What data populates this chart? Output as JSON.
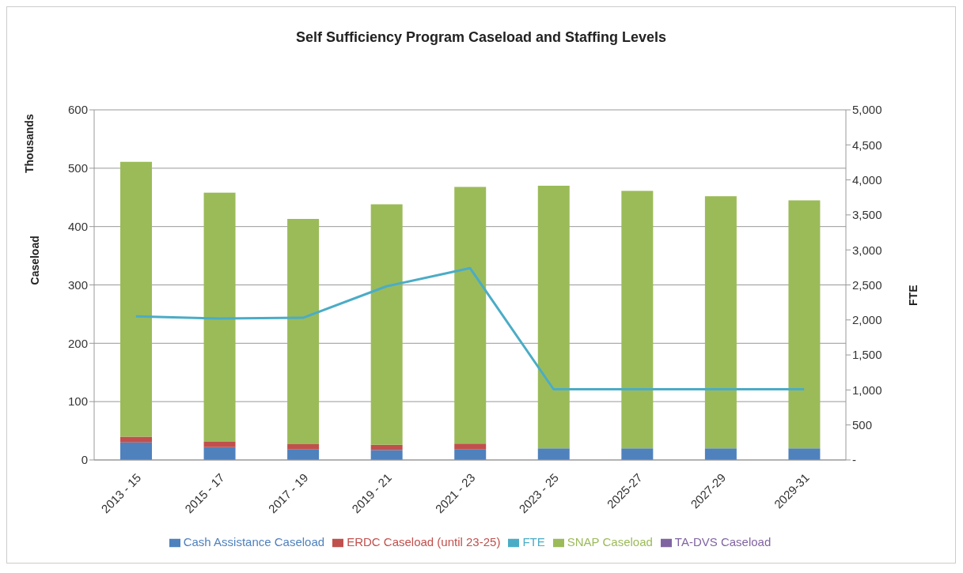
{
  "chart_data": {
    "type": "bar",
    "title": "Self Sufficiency Program Caseload and Staffing Levels",
    "ylabel": "Caseload",
    "y2label": "FTE",
    "annotations": [
      "Thousands"
    ],
    "categories": [
      "2013 - 15",
      "2015 - 17",
      "2017 - 19",
      "2019 - 21",
      "2021 - 23",
      "2023 - 25",
      "2025-27",
      "2027-29",
      "2029-31"
    ],
    "stacked": true,
    "series": [
      {
        "name": "Cash Assistance Caseload",
        "color": "#4f81bd",
        "values": [
          30,
          22,
          18,
          17,
          18,
          20,
          20,
          20,
          20
        ]
      },
      {
        "name": "ERDC Caseload (until 23-25)",
        "color": "#c0504d",
        "values": [
          10,
          9,
          9,
          9,
          10,
          null,
          null,
          null,
          null
        ]
      },
      {
        "name": "SNAP Caseload",
        "color": "#9bbb59",
        "values": [
          471,
          427,
          386,
          412,
          440,
          450,
          441,
          432,
          425
        ]
      },
      {
        "name": "FTE",
        "type": "line",
        "axis": "y2",
        "color": "#4bacc6",
        "values": [
          2050,
          2020,
          2030,
          2480,
          2740,
          1010,
          1010,
          1010,
          1010
        ]
      },
      {
        "name": "TA-DVS Caseload",
        "type": "line",
        "color": "#8064a2",
        "values": [
          null,
          null,
          null,
          null,
          null,
          null,
          null,
          null,
          null
        ]
      }
    ],
    "ylim": [
      0,
      600
    ],
    "yticks": [
      0,
      100,
      200,
      300,
      400,
      500,
      600
    ],
    "y2lim": [
      0,
      5000
    ],
    "y2ticks": [
      {
        "value": 0,
        "label": "-"
      },
      500,
      {
        "value": 1000,
        "label": "1,000"
      },
      {
        "value": 1500,
        "label": "1,500"
      },
      {
        "value": 2000,
        "label": "2,000"
      },
      {
        "value": 2500,
        "label": "2,500"
      },
      {
        "value": 3000,
        "label": "3,000"
      },
      {
        "value": 3500,
        "label": "3,500"
      },
      {
        "value": 4000,
        "label": "4,000"
      },
      {
        "value": 4500,
        "label": "4,500"
      },
      {
        "value": 5000,
        "label": "5,000"
      }
    ],
    "grid": "y",
    "legend": "bottom",
    "marker": "none"
  }
}
